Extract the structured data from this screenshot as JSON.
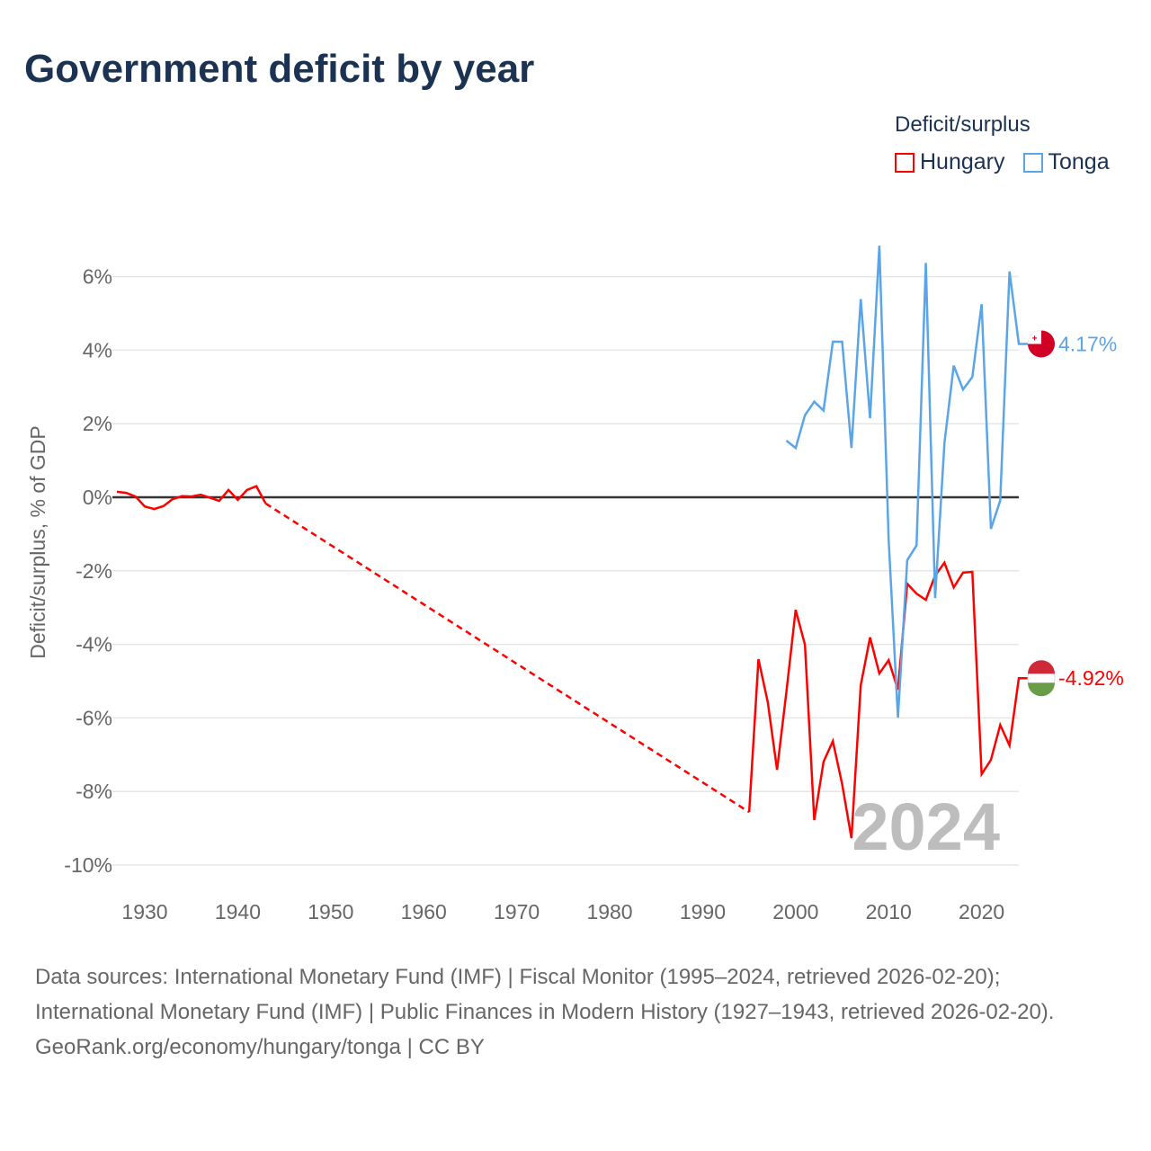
{
  "title": "Government deficit by year",
  "legend": {
    "title": "Deficit/surplus",
    "items": [
      {
        "name": "Hungary",
        "color": "#ff0000"
      },
      {
        "name": "Tonga",
        "color": "#5aa5e8"
      }
    ]
  },
  "footer": {
    "line1": "Data sources: International Monetary Fund (IMF) | Fiscal Monitor (1995–2024, retrieved 2026-02-20); International Monetary Fund (IMF) | Public Finances in Modern History (1927–1943, retrieved 2026-02-20).",
    "line2": "GeoRank.org/economy/hungary/tonga | CC BY"
  },
  "chart_data": {
    "type": "line",
    "title": "Government deficit by year",
    "ylabel": "Deficit/surplus, % of GDP",
    "xlabel": "",
    "xlim": [
      1927,
      2024
    ],
    "ylim": [
      -10,
      7
    ],
    "x_ticks": [
      "1930",
      "1940",
      "1950",
      "1960",
      "1970",
      "1980",
      "1990",
      "2000",
      "2010",
      "2020"
    ],
    "y_ticks": [
      "6%",
      "4%",
      "2%",
      "0%",
      "-2%",
      "-4%",
      "-6%",
      "-8%",
      "-10%"
    ],
    "year_watermark": "2024",
    "series": [
      {
        "name": "Hungary",
        "color": "#ff0000",
        "end_label": "-4.92%",
        "x": [
          1927,
          1928,
          1929,
          1930,
          1931,
          1932,
          1933,
          1934,
          1935,
          1936,
          1937,
          1938,
          1939,
          1940,
          1941,
          1942,
          1943,
          1995,
          1996,
          1997,
          1998,
          1999,
          2000,
          2001,
          2002,
          2003,
          2004,
          2005,
          2006,
          2007,
          2008,
          2009,
          2010,
          2011,
          2012,
          2013,
          2014,
          2015,
          2016,
          2017,
          2018,
          2019,
          2020,
          2021,
          2022,
          2023,
          2024
        ],
        "y": [
          0.15,
          0.12,
          0.02,
          -0.25,
          -0.32,
          -0.24,
          -0.05,
          0.03,
          0.02,
          0.07,
          -0.01,
          -0.1,
          0.2,
          -0.07,
          0.2,
          0.3,
          -0.17,
          -8.56,
          -4.4,
          -5.57,
          -7.41,
          -5.3,
          -3.06,
          -4.01,
          -8.78,
          -7.19,
          -6.63,
          -7.8,
          -9.27,
          -5.11,
          -3.81,
          -4.79,
          -4.43,
          -5.23,
          -2.35,
          -2.62,
          -2.79,
          -2.13,
          -1.78,
          -2.45,
          -2.05,
          -2.03,
          -7.53,
          -7.14,
          -6.19,
          -6.75,
          -4.92
        ],
        "gap_after": 1943
      },
      {
        "name": "Tonga",
        "color": "#5aa5e8",
        "end_label": "4.17%",
        "x": [
          1999,
          2000,
          2001,
          2002,
          2003,
          2004,
          2005,
          2006,
          2007,
          2008,
          2009,
          2010,
          2011,
          2012,
          2013,
          2014,
          2015,
          2016,
          2017,
          2018,
          2019,
          2020,
          2021,
          2022,
          2023,
          2024
        ],
        "y": [
          1.54,
          1.34,
          2.23,
          2.6,
          2.36,
          4.23,
          4.23,
          1.34,
          5.39,
          2.15,
          6.84,
          -1.15,
          -5.99,
          -1.71,
          -1.31,
          6.37,
          -2.74,
          1.47,
          3.58,
          2.93,
          3.27,
          5.25,
          -0.86,
          -0.09,
          6.14,
          4.17
        ]
      }
    ]
  }
}
